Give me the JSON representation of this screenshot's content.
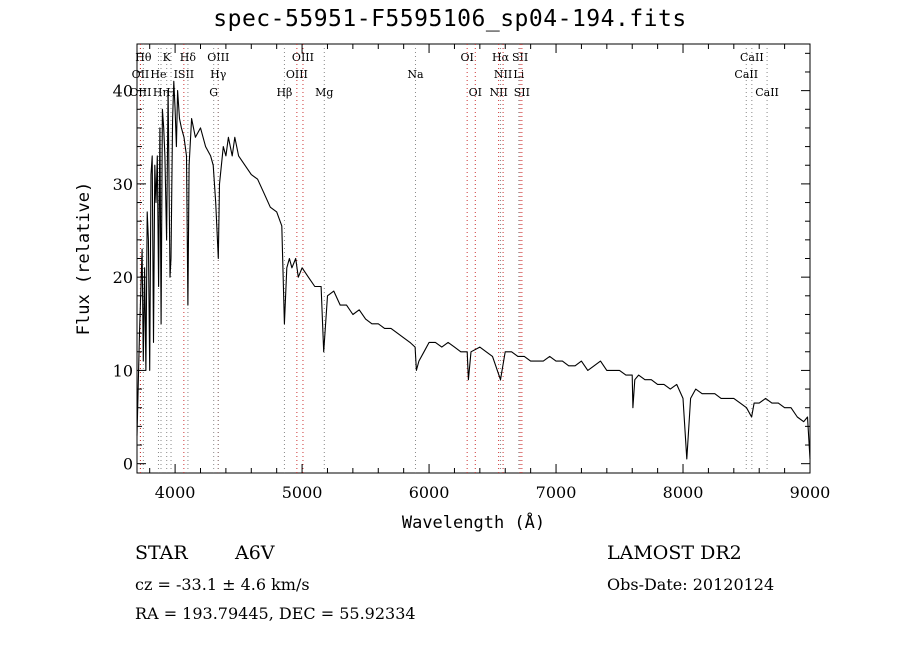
{
  "chart_data": {
    "type": "line",
    "title": "spec-55951-F5595106_sp04-194.fits",
    "xlabel": "Wavelength (Å)",
    "ylabel": "Flux (relative)",
    "xlim": [
      3700,
      9000
    ],
    "ylim": [
      -1,
      45
    ],
    "xticks": [
      4000,
      5000,
      6000,
      7000,
      8000,
      9000
    ],
    "yticks": [
      0,
      10,
      20,
      30,
      40
    ],
    "grid": false,
    "series": [
      {
        "color": "#000000",
        "points": [
          [
            3700,
            3
          ],
          [
            3720,
            14
          ],
          [
            3740,
            23
          ],
          [
            3750,
            11
          ],
          [
            3760,
            21
          ],
          [
            3770,
            10
          ],
          [
            3780,
            27
          ],
          [
            3790,
            24
          ],
          [
            3800,
            10
          ],
          [
            3810,
            31
          ],
          [
            3820,
            33
          ],
          [
            3830,
            13
          ],
          [
            3840,
            32
          ],
          [
            3850,
            28
          ],
          [
            3860,
            33
          ],
          [
            3870,
            19
          ],
          [
            3880,
            36
          ],
          [
            3890,
            15
          ],
          [
            3900,
            38
          ],
          [
            3910,
            36
          ],
          [
            3920,
            33
          ],
          [
            3933,
            24
          ],
          [
            3945,
            40
          ],
          [
            3960,
            20
          ],
          [
            3968,
            22
          ],
          [
            3980,
            37
          ],
          [
            3990,
            41
          ],
          [
            4000,
            38
          ],
          [
            4010,
            34
          ],
          [
            4020,
            40
          ],
          [
            4035,
            37
          ],
          [
            4050,
            36
          ],
          [
            4070,
            35
          ],
          [
            4090,
            33
          ],
          [
            4101,
            17
          ],
          [
            4110,
            32
          ],
          [
            4130,
            37
          ],
          [
            4160,
            35
          ],
          [
            4200,
            36
          ],
          [
            4240,
            34
          ],
          [
            4280,
            33
          ],
          [
            4300,
            32
          ],
          [
            4320,
            28
          ],
          [
            4340,
            22
          ],
          [
            4350,
            30
          ],
          [
            4380,
            34
          ],
          [
            4400,
            33
          ],
          [
            4420,
            35
          ],
          [
            4450,
            33
          ],
          [
            4470,
            35
          ],
          [
            4500,
            33
          ],
          [
            4550,
            32
          ],
          [
            4600,
            31
          ],
          [
            4650,
            30.5
          ],
          [
            4700,
            29
          ],
          [
            4750,
            27.5
          ],
          [
            4800,
            27
          ],
          [
            4840,
            25.5
          ],
          [
            4861,
            15
          ],
          [
            4880,
            21
          ],
          [
            4900,
            22
          ],
          [
            4920,
            21
          ],
          [
            4950,
            22
          ],
          [
            4970,
            20
          ],
          [
            5000,
            21
          ],
          [
            5050,
            20
          ],
          [
            5100,
            19
          ],
          [
            5150,
            19
          ],
          [
            5170,
            12
          ],
          [
            5200,
            18
          ],
          [
            5250,
            18.5
          ],
          [
            5300,
            17
          ],
          [
            5350,
            17
          ],
          [
            5400,
            16
          ],
          [
            5450,
            16.5
          ],
          [
            5500,
            15.5
          ],
          [
            5550,
            15
          ],
          [
            5600,
            15
          ],
          [
            5650,
            14.5
          ],
          [
            5700,
            14.5
          ],
          [
            5750,
            14
          ],
          [
            5800,
            13.5
          ],
          [
            5850,
            13
          ],
          [
            5890,
            12.5
          ],
          [
            5900,
            10
          ],
          [
            5920,
            11
          ],
          [
            5960,
            12
          ],
          [
            6000,
            13
          ],
          [
            6050,
            13
          ],
          [
            6100,
            12.5
          ],
          [
            6150,
            13
          ],
          [
            6200,
            12.5
          ],
          [
            6250,
            12
          ],
          [
            6300,
            12
          ],
          [
            6310,
            9
          ],
          [
            6330,
            12
          ],
          [
            6400,
            12.5
          ],
          [
            6450,
            12
          ],
          [
            6500,
            11.5
          ],
          [
            6563,
            9
          ],
          [
            6600,
            12
          ],
          [
            6650,
            12
          ],
          [
            6700,
            11.5
          ],
          [
            6750,
            11.5
          ],
          [
            6800,
            11
          ],
          [
            6850,
            11
          ],
          [
            6900,
            11
          ],
          [
            6950,
            11.5
          ],
          [
            7000,
            11
          ],
          [
            7050,
            11
          ],
          [
            7100,
            10.5
          ],
          [
            7150,
            10.5
          ],
          [
            7200,
            11
          ],
          [
            7250,
            10
          ],
          [
            7300,
            10.5
          ],
          [
            7350,
            11
          ],
          [
            7400,
            10
          ],
          [
            7450,
            10
          ],
          [
            7500,
            10
          ],
          [
            7550,
            9.5
          ],
          [
            7600,
            9.5
          ],
          [
            7605,
            6
          ],
          [
            7620,
            9
          ],
          [
            7650,
            9.5
          ],
          [
            7700,
            9
          ],
          [
            7750,
            9
          ],
          [
            7800,
            8.5
          ],
          [
            7850,
            8.5
          ],
          [
            7900,
            8
          ],
          [
            7950,
            8.5
          ],
          [
            8000,
            7
          ],
          [
            8030,
            0.5
          ],
          [
            8060,
            7
          ],
          [
            8100,
            8
          ],
          [
            8150,
            7.5
          ],
          [
            8200,
            7.5
          ],
          [
            8250,
            7.5
          ],
          [
            8300,
            7
          ],
          [
            8350,
            7
          ],
          [
            8400,
            7
          ],
          [
            8450,
            6.5
          ],
          [
            8500,
            6
          ],
          [
            8540,
            5
          ],
          [
            8560,
            6.5
          ],
          [
            8600,
            6.5
          ],
          [
            8650,
            7
          ],
          [
            8700,
            6.5
          ],
          [
            8750,
            6.5
          ],
          [
            8800,
            6
          ],
          [
            8850,
            6
          ],
          [
            8900,
            5
          ],
          [
            8950,
            4.5
          ],
          [
            8980,
            5
          ],
          [
            9000,
            0.5
          ]
        ]
      }
    ],
    "line_markers": [
      {
        "wavelength": 3750,
        "label": "Hθ",
        "row": 1,
        "color": "#888888"
      },
      {
        "wavelength": 3727,
        "label": "OII",
        "row": 2,
        "color": "#cc3333"
      },
      {
        "wavelength": 3727,
        "label": "OIII",
        "row": 3,
        "color": "#cc3333"
      },
      {
        "wavelength": 3889,
        "label": "Hη",
        "row": 3,
        "color": "#888888"
      },
      {
        "wavelength": 3934,
        "label": "K",
        "row": 1,
        "color": "#888888"
      },
      {
        "wavelength": 3869,
        "label": "He",
        "row": 2,
        "color": "#888888"
      },
      {
        "wavelength": 3968,
        "label": "H",
        "row": 3,
        "color": "#888888"
      },
      {
        "wavelength": 4069,
        "label": "ISII",
        "row": 2,
        "color": "#cc3333"
      },
      {
        "wavelength": 4101,
        "label": "Hδ",
        "row": 1,
        "color": "#888888"
      },
      {
        "wavelength": 4340,
        "label": "OIII",
        "row": 1,
        "color": "#cc3333"
      },
      {
        "wavelength": 4340,
        "label": "Hγ",
        "row": 2,
        "color": "#888888"
      },
      {
        "wavelength": 4304,
        "label": "G",
        "row": 3,
        "color": "#888888"
      },
      {
        "wavelength": 4861,
        "label": "Hβ",
        "row": 3,
        "color": "#888888"
      },
      {
        "wavelength": 5007,
        "label": "OIII",
        "row": 1,
        "color": "#cc3333"
      },
      {
        "wavelength": 4959,
        "label": "OIII",
        "row": 2,
        "color": "#cc3333"
      },
      {
        "wavelength": 5175,
        "label": "Mg",
        "row": 3,
        "color": "#888888"
      },
      {
        "wavelength": 5893,
        "label": "Na",
        "row": 2,
        "color": "#888888"
      },
      {
        "wavelength": 6300,
        "label": "OI",
        "row": 1,
        "color": "#cc3333"
      },
      {
        "wavelength": 6364,
        "label": "OI",
        "row": 3,
        "color": "#cc3333"
      },
      {
        "wavelength": 6563,
        "label": "Hα",
        "row": 1,
        "color": "#888888"
      },
      {
        "wavelength": 6583,
        "label": "NII",
        "row": 2,
        "color": "#cc3333"
      },
      {
        "wavelength": 6548,
        "label": "NII",
        "row": 3,
        "color": "#cc3333"
      },
      {
        "wavelength": 6717,
        "label": "SII",
        "row": 1,
        "color": "#cc3333"
      },
      {
        "wavelength": 6707,
        "label": "Li",
        "row": 2,
        "color": "#888888"
      },
      {
        "wavelength": 6731,
        "label": "SII",
        "row": 3,
        "color": "#cc3333"
      },
      {
        "wavelength": 8542,
        "label": "CaII",
        "row": 1,
        "color": "#888888"
      },
      {
        "wavelength": 8498,
        "label": "CaII",
        "row": 2,
        "color": "#888888"
      },
      {
        "wavelength": 8662,
        "label": "CaII",
        "row": 3,
        "color": "#888888"
      }
    ]
  },
  "info": {
    "class": "STAR",
    "subclass": "A6V",
    "survey": "LAMOST DR2",
    "cz": "cz = -33.1 ± 4.6 km/s",
    "obs_date": "Obs-Date: 20120124",
    "coords": "RA = 193.79445, DEC =  55.92334"
  }
}
